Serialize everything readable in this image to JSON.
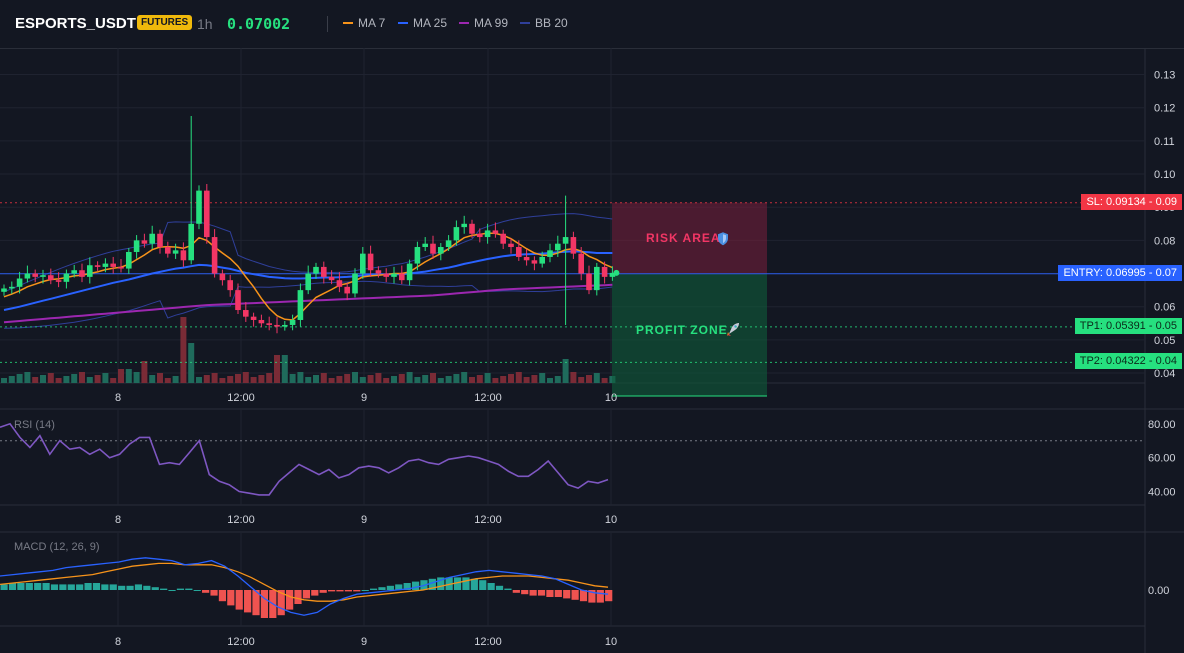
{
  "header": {
    "symbol": "ESPORTS_USDT",
    "badge": "FUTURES",
    "timeframe": "1h",
    "last_price": "0.07002",
    "legend": [
      {
        "label": "MA 7",
        "color": "#f7931a"
      },
      {
        "label": "MA 25",
        "color": "#2962ff"
      },
      {
        "label": "MA 99",
        "color": "#9c27b0"
      },
      {
        "label": "BB 20",
        "color": "#2f3f9a"
      }
    ]
  },
  "chart_data": [
    {
      "type": "candlestick",
      "interval": "1h",
      "x_ticks": [
        "8",
        "12:00",
        "9",
        "12:00",
        "10"
      ],
      "y_ticks": [
        "0.13",
        "0.12",
        "0.11",
        "0.10",
        "0.09",
        "0.08",
        "0.07",
        "0.06",
        "0.05",
        "0.04"
      ],
      "ylim": [
        0.037,
        0.138
      ],
      "grid": true,
      "series_names": [
        "MA 7",
        "MA 25",
        "MA 99",
        "BB 20"
      ],
      "levels": [
        {
          "label": "SL: 0.09134",
          "axis": "0.09",
          "value": 0.09134,
          "color": "#f23645"
        },
        {
          "label": "ENTRY: 0.06995",
          "axis": "0.07",
          "value": 0.06995,
          "color": "#2962ff"
        },
        {
          "label": "TP1: 0.05391",
          "axis": "0.05",
          "value": 0.05391,
          "color": "#26e07f"
        },
        {
          "label": "TP2: 0.04322",
          "axis": "0.04",
          "value": 0.04322,
          "color": "#26e07f"
        }
      ],
      "zones": [
        {
          "label": "RISK AREA",
          "icon": "shield-icon",
          "from": 0.06995,
          "to": 0.09134
        },
        {
          "label": "PROFIT ZONE",
          "icon": "rocket-icon",
          "from": 0.04322,
          "to": 0.06995
        }
      ],
      "closes": [
        0.0655,
        0.066,
        0.0685,
        0.07,
        0.069,
        0.0695,
        0.068,
        0.0675,
        0.07,
        0.071,
        0.069,
        0.0725,
        0.072,
        0.073,
        0.072,
        0.0715,
        0.0765,
        0.08,
        0.079,
        0.082,
        0.078,
        0.076,
        0.077,
        0.074,
        0.085,
        0.095,
        0.081,
        0.07,
        0.068,
        0.065,
        0.059,
        0.057,
        0.056,
        0.055,
        0.0545,
        0.054,
        0.0545,
        0.056,
        0.065,
        0.07,
        0.072,
        0.069,
        0.068,
        0.066,
        0.064,
        0.07,
        0.076,
        0.071,
        0.07,
        0.069,
        0.07,
        0.068,
        0.073,
        0.078,
        0.079,
        0.076,
        0.078,
        0.08,
        0.084,
        0.085,
        0.082,
        0.081,
        0.083,
        0.082,
        0.079,
        0.078,
        0.075,
        0.074,
        0.073,
        0.075,
        0.077,
        0.079,
        0.081,
        0.076,
        0.07,
        0.065,
        0.072,
        0.069,
        0.0702
      ],
      "ma7": [
        0.063,
        0.0638,
        0.0648,
        0.066,
        0.0668,
        0.0676,
        0.0682,
        0.0684,
        0.0688,
        0.0693,
        0.0695,
        0.07,
        0.0705,
        0.0712,
        0.0716,
        0.0719,
        0.0728,
        0.0742,
        0.0756,
        0.0772,
        0.078,
        0.0781,
        0.078,
        0.0776,
        0.0785,
        0.0808,
        0.08,
        0.078,
        0.0762,
        0.0745,
        0.0722,
        0.069,
        0.066,
        0.0625,
        0.0595,
        0.0573,
        0.0562,
        0.056,
        0.058,
        0.0605,
        0.0628,
        0.064,
        0.0652,
        0.0665,
        0.067,
        0.0678,
        0.069,
        0.0693,
        0.0695,
        0.0697,
        0.07,
        0.07,
        0.0705,
        0.072,
        0.0735,
        0.0748,
        0.076,
        0.0775,
        0.0792,
        0.0808,
        0.0815,
        0.0818,
        0.0822,
        0.0821,
        0.0815,
        0.0805,
        0.079,
        0.0775,
        0.0762,
        0.0755,
        0.0755,
        0.0762,
        0.0772,
        0.0775,
        0.0768,
        0.0752,
        0.0742,
        0.0728,
        0.0718
      ],
      "ma25": [
        0.059,
        0.0595,
        0.06,
        0.0606,
        0.0612,
        0.0618,
        0.0624,
        0.063,
        0.0636,
        0.0642,
        0.0648,
        0.0654,
        0.066,
        0.0666,
        0.0672,
        0.0677,
        0.0682,
        0.0688,
        0.0694,
        0.07,
        0.0705,
        0.071,
        0.0715,
        0.0718,
        0.0722,
        0.0726,
        0.0725,
        0.0722,
        0.0718,
        0.0714,
        0.0708,
        0.0702,
        0.0698,
        0.0694,
        0.069,
        0.0688,
        0.0686,
        0.0685,
        0.0685,
        0.0686,
        0.0687,
        0.0688,
        0.0688,
        0.0689,
        0.069,
        0.0692,
        0.0695,
        0.0696,
        0.0697,
        0.0697,
        0.0698,
        0.0698,
        0.07,
        0.0703,
        0.0706,
        0.071,
        0.0714,
        0.0718,
        0.0723,
        0.0729,
        0.0734,
        0.0739,
        0.0744,
        0.0748,
        0.0752,
        0.0755,
        0.0757,
        0.0758,
        0.0759,
        0.076,
        0.0762,
        0.0764,
        0.0766,
        0.0767,
        0.0766,
        0.0764,
        0.0762,
        0.0762,
        0.0762
      ],
      "ma99": [
        0.0553,
        0.0555,
        0.0557,
        0.0559,
        0.0561,
        0.0563,
        0.0565,
        0.0567,
        0.0569,
        0.0571,
        0.0573,
        0.0575,
        0.0577,
        0.0579,
        0.0581,
        0.0583,
        0.0585,
        0.0587,
        0.0589,
        0.0591,
        0.0593,
        0.0595,
        0.0597,
        0.0599,
        0.0601,
        0.0603,
        0.0605,
        0.0606,
        0.0607,
        0.0608,
        0.0609,
        0.061,
        0.0611,
        0.0612,
        0.0613,
        0.0614,
        0.0615,
        0.0616,
        0.0617,
        0.0618,
        0.0619,
        0.062,
        0.0621,
        0.0622,
        0.0623,
        0.0624,
        0.0625,
        0.0626,
        0.0627,
        0.0628,
        0.0629,
        0.063,
        0.0631,
        0.0632,
        0.0633,
        0.0634,
        0.0636,
        0.0638,
        0.064,
        0.0642,
        0.0644,
        0.0646,
        0.0648,
        0.065,
        0.0652,
        0.0653,
        0.0654,
        0.0655,
        0.0656,
        0.0657,
        0.0658,
        0.0659,
        0.066,
        0.0661,
        0.0662,
        0.0663,
        0.0664,
        0.0665,
        0.0666
      ]
    },
    {
      "type": "line",
      "name": "RSI (14)",
      "y_ticks": [
        "80.00",
        "60.00",
        "40.00"
      ],
      "ylim": [
        32,
        87
      ],
      "overbought": 70,
      "values": [
        78,
        80,
        72,
        66,
        73,
        62,
        70,
        65,
        66,
        62,
        65,
        60,
        62,
        68,
        72,
        72,
        56,
        57,
        56,
        63,
        70,
        50,
        46,
        44,
        40,
        39,
        38,
        38,
        46,
        51,
        56,
        53,
        50,
        53,
        48,
        50,
        54,
        55,
        54,
        51,
        54,
        58,
        59,
        57,
        56,
        59,
        60,
        61,
        60,
        58,
        56,
        52,
        49,
        49,
        53,
        58,
        51,
        44,
        42,
        46,
        45,
        47
      ]
    },
    {
      "type": "bar",
      "name": "MACD (12, 26, 9)",
      "y_ticks": [
        "0.00"
      ],
      "histogram": [
        0.0004,
        0.0005,
        0.0005,
        0.0005,
        0.0005,
        0.0005,
        0.0004,
        0.0004,
        0.0004,
        0.0004,
        0.0005,
        0.0005,
        0.0004,
        0.0004,
        0.0003,
        0.0003,
        0.0004,
        0.0003,
        0.0002,
        0.0001,
        0.0,
        0.0001,
        0.0001,
        0.0,
        -0.0002,
        -0.0004,
        -0.0008,
        -0.0011,
        -0.0014,
        -0.0016,
        -0.0018,
        -0.002,
        -0.002,
        -0.0018,
        -0.0014,
        -0.001,
        -0.0006,
        -0.0004,
        -0.0002,
        -0.0001,
        -0.0001,
        -0.0001,
        -0.0001,
        0.0,
        0.0001,
        0.0002,
        0.0003,
        0.0004,
        0.0005,
        0.0006,
        0.0007,
        0.0008,
        0.0009,
        0.0009,
        0.0009,
        0.0009,
        0.0008,
        0.0007,
        0.0005,
        0.0003,
        0.0001,
        -0.0002,
        -0.0003,
        -0.0004,
        -0.0004,
        -0.0005,
        -0.0005,
        -0.0006,
        -0.0007,
        -0.0008,
        -0.0009,
        -0.0009,
        -0.0008
      ],
      "macd": [
        0.001,
        0.0011,
        0.0012,
        0.0013,
        0.0014,
        0.0016,
        0.0017,
        0.0018,
        0.0019,
        0.002,
        0.0022,
        0.0023,
        0.0022,
        0.0021,
        0.0018,
        0.0019,
        0.0021,
        0.0017,
        0.001,
        0.0002,
        -0.0006,
        -0.0012,
        -0.0016,
        -0.0018,
        -0.0016,
        -0.001,
        -0.0006,
        -0.0003,
        -0.0002,
        -0.0001,
        0.0,
        0.0001,
        0.0003,
        0.0006,
        0.0009,
        0.0011,
        0.0013,
        0.0014,
        0.0013,
        0.0012,
        0.0011,
        0.001,
        0.0008,
        0.0004,
        0.0,
        -0.0002,
        -0.0003
      ],
      "signal": [
        0.0004,
        0.0005,
        0.0006,
        0.0007,
        0.0008,
        0.0009,
        0.001,
        0.0011,
        0.0013,
        0.0015,
        0.0017,
        0.0018,
        0.0019,
        0.0019,
        0.0018,
        0.0018,
        0.0018,
        0.0016,
        0.0013,
        0.0009,
        0.0004,
        -0.0001,
        -0.0005,
        -0.0007,
        -0.0008,
        -0.0008,
        -0.0007,
        -0.0005,
        -0.0004,
        -0.0003,
        -0.0002,
        -0.0001,
        0.0,
        0.0002,
        0.0004,
        0.0006,
        0.0008,
        0.0009,
        0.001,
        0.001,
        0.001,
        0.0009,
        0.0008,
        0.0007,
        0.0005,
        0.0003,
        0.0002
      ]
    }
  ]
}
